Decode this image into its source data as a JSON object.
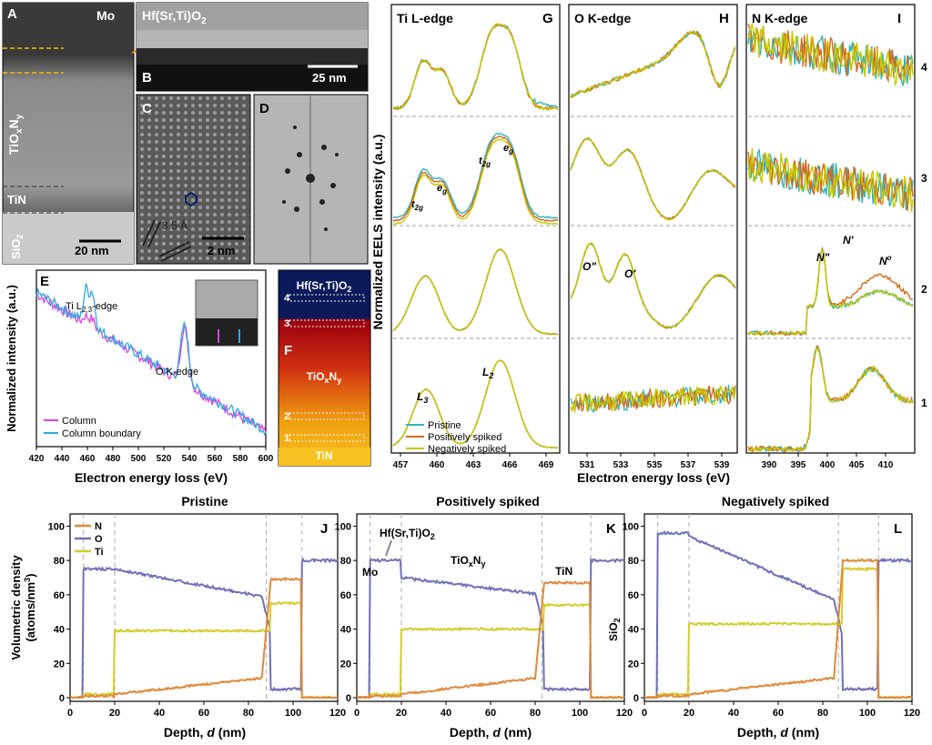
{
  "panels": {
    "A": {
      "letter": "A",
      "top_label": "Mo",
      "layer1": "TiO",
      "layer1_sub_x": "x",
      "layer1_n": "N",
      "layer1_sub_y": "y",
      "layer2": "TiN",
      "layer3": "SiO",
      "layer3_sub": "2",
      "scale": "20 nm"
    },
    "B": {
      "letter": "B",
      "title": "Hf(Sr,Ti)O",
      "title_sub": "2",
      "scale": "25 nm"
    },
    "C": {
      "letter": "C",
      "spacing": "3.5 Å",
      "scale": "2 nm"
    },
    "D": {
      "letter": "D"
    },
    "E": {
      "letter": "E",
      "ylabel": "Normalized intensity (a.u.)",
      "xlabel": "Electron energy loss (eV)",
      "ti_label": "Ti L",
      "ti_sub": "2,3",
      "ti_suffix": "-edge",
      "o_label": "O K-edge",
      "legend": [
        "Column",
        "Column boundary"
      ]
    },
    "F": {
      "letter": "F",
      "top": "Hf(Sr,Ti)O",
      "top_sub": "2",
      "mid": "TiO",
      "mid_sub_x": "x",
      "mid_n": "N",
      "mid_sub_y": "y",
      "bottom": "TiN",
      "markers": [
        "4",
        "3",
        "2",
        "1"
      ]
    },
    "G": {
      "letter": "G",
      "title": "Ti L-edge",
      "labels": {
        "t2g": "t",
        "t2g_sub": "2g",
        "eg": "e",
        "eg_sub": "g",
        "L3": "L",
        "L3_sub": "3",
        "L2": "L",
        "L2_sub": "2"
      },
      "legend": [
        "Pristine",
        "Positively spiked",
        "Negatively spiked"
      ]
    },
    "H": {
      "letter": "H",
      "title": "O K-edge",
      "o2": "O\"",
      "o1": "O'"
    },
    "I": {
      "letter": "I",
      "title": "N K-edge",
      "n2": "N\"",
      "n1": "N'",
      "n0": "N",
      "n0_sup": "o",
      "row_labels": [
        "4",
        "3",
        "2",
        "1"
      ]
    },
    "J": {
      "letter": "J",
      "title": "Pristine"
    },
    "K": {
      "letter": "K",
      "title": "Positively spiked",
      "label_hf": "Hf(Sr,Ti)O",
      "label_hf_sub": "2",
      "label_mo": "Mo",
      "label_tion": "TiO",
      "label_tion_x": "x",
      "label_tion_n": "N",
      "label_tion_y": "y",
      "label_tin": "TiN",
      "label_sio2": "SiO",
      "label_sio2_sub": "2"
    },
    "L": {
      "letter": "L",
      "title": "Negatively spiked"
    }
  },
  "shared": {
    "eels_ylabel": "Normalized EELS intensity (a.u.)",
    "eels_xlabel": "Electron energy loss (eV)",
    "depth_xlabel": "Depth, ",
    "depth_xlabel_var": "d",
    "depth_xlabel_unit": " (nm)",
    "vol_ylabel_1": "Volumetric density",
    "vol_ylabel_2": "(atoms/nm",
    "vol_ylabel_sup": "3",
    "vol_ylabel_3": ")",
    "legend_NOTi": [
      "N",
      "O",
      "Ti"
    ]
  },
  "colors": {
    "pristine": "#2bb5bf",
    "positive": "#d2691e",
    "negative": "#c8c800",
    "N": "#e0883a",
    "O": "#7070b8",
    "Ti": "#d4cc2a",
    "column": "#e040e0",
    "boundary": "#30a8e0"
  },
  "ticks": {
    "E_x": [
      "420",
      "440",
      "460",
      "480",
      "500",
      "520",
      "540",
      "560",
      "580",
      "600"
    ],
    "G_x": [
      "457",
      "460",
      "463",
      "466",
      "469"
    ],
    "H_x": [
      "531",
      "533",
      "535",
      "537",
      "539"
    ],
    "I_x": [
      "390",
      "395",
      "400",
      "405",
      "410"
    ],
    "depth_x": [
      "0",
      "20",
      "40",
      "60",
      "80",
      "100",
      "120"
    ],
    "vol_y": [
      "0",
      "20",
      "40",
      "60",
      "80",
      "100"
    ]
  }
}
